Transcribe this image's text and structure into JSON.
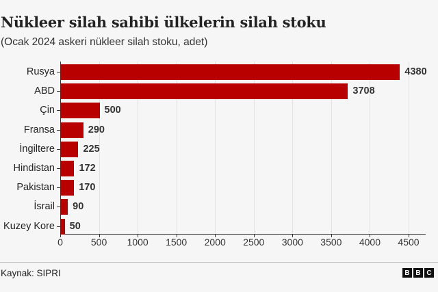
{
  "header": {
    "title": "Nükleer silah sahibi ülkelerin silah stoku",
    "subtitle": "(Ocak 2024 askeri nükleer silah stoku, adet)"
  },
  "footer": {
    "source": "Kaynak: SIPRI",
    "logo": [
      "B",
      "B",
      "C"
    ]
  },
  "colors": {
    "bar": "#b80000",
    "background": "#f6f6f6"
  },
  "chart_data": {
    "type": "bar",
    "orientation": "horizontal",
    "title": "Nükleer silah sahibi ülkelerin silah stoku",
    "subtitle": "(Ocak 2024 askeri nükleer silah stoku, adet)",
    "categories": [
      "Rusya",
      "ABD",
      "Çin",
      "Fransa",
      "İngiltere",
      "Hindistan",
      "Pakistan",
      "İsrail",
      "Kuzey Kore"
    ],
    "values": [
      4380,
      3708,
      500,
      290,
      225,
      172,
      170,
      90,
      50
    ],
    "xlabel": "",
    "ylabel": "",
    "xlim": [
      0,
      4700
    ],
    "xticks": [
      0,
      500,
      1000,
      1500,
      2000,
      2500,
      3000,
      3500,
      4000,
      4500
    ],
    "xtick_labels": [
      "0",
      "500",
      "1000",
      "1500",
      "2000",
      "2500",
      "3000",
      "3500",
      "4000",
      "4500"
    ],
    "grid": "vertical",
    "legend": null,
    "source": "Kaynak: SIPRI"
  }
}
